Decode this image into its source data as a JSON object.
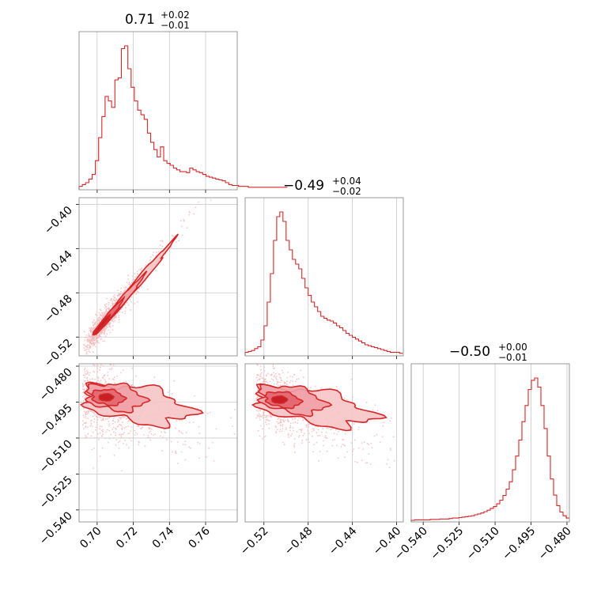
{
  "chart_data": [
    {
      "type": "histogram",
      "panel": "diag-0",
      "title": {
        "median": "0.71",
        "plus": "+0.02",
        "minus": "−0.01"
      },
      "xlim": [
        0.69,
        0.7775
      ],
      "ticks": [
        0.7,
        0.72,
        0.74,
        0.76
      ],
      "bins": {
        "start": 0.69,
        "width": 0.0018,
        "counts": [
          2,
          4,
          6,
          10,
          15,
          30,
          55,
          78,
          100,
          95,
          88,
          118,
          120,
          152,
          155,
          130,
          110,
          95,
          85,
          80,
          75,
          60,
          50,
          42,
          34,
          45,
          30,
          27,
          25,
          22,
          20,
          18,
          18,
          17,
          22,
          20,
          18,
          17,
          15,
          13,
          12,
          11,
          10,
          9,
          8,
          6,
          4,
          3,
          3,
          2,
          2,
          2,
          1,
          1,
          1,
          1,
          1,
          1,
          1,
          1,
          1,
          1,
          1,
          1
        ]
      }
    },
    {
      "type": "histogram",
      "panel": "diag-1",
      "title": {
        "median": "−0.49",
        "plus": "+0.04",
        "minus": "−0.02"
      },
      "xlim": [
        -0.537,
        -0.394
      ],
      "ticks": [
        -0.52,
        -0.48,
        -0.44,
        -0.4
      ],
      "bins": {
        "start": -0.537,
        "width": 0.00285,
        "counts": [
          2,
          3,
          4,
          6,
          8,
          15,
          30,
          55,
          85,
          120,
          145,
          150,
          140,
          120,
          110,
          100,
          95,
          90,
          80,
          70,
          62,
          55,
          50,
          45,
          40,
          38,
          36,
          35,
          33,
          30,
          28,
          25,
          22,
          20,
          18,
          16,
          14,
          12,
          10,
          9,
          8,
          7,
          6,
          5,
          4,
          3,
          2,
          2,
          2,
          1
        ]
      }
    },
    {
      "type": "histogram",
      "panel": "diag-2",
      "title": {
        "median": "−0.50",
        "plus": "+0.00",
        "minus": "−0.01"
      },
      "xlim": [
        -0.545,
        -0.479
      ],
      "ticks": [
        -0.54,
        -0.525,
        -0.51,
        -0.495,
        -0.48
      ],
      "tick_labels": [
        "−0.540",
        "−0.525",
        "−0.510",
        "−0.495",
        "−0.480"
      ],
      "bins": {
        "start": -0.545,
        "width": 0.00132,
        "counts": [
          0,
          1,
          1,
          1,
          1,
          1,
          2,
          2,
          2,
          3,
          3,
          3,
          4,
          5,
          5,
          6,
          7,
          8,
          9,
          10,
          12,
          14,
          16,
          19,
          22,
          26,
          30,
          36,
          44,
          54,
          68,
          84,
          110,
          140,
          175,
          215,
          250,
          285,
          305,
          310,
          290,
          250,
          200,
          140,
          90,
          55,
          32,
          18,
          10,
          5
        ]
      }
    },
    {
      "type": "scatter-contour",
      "panel": "p10",
      "xlim": [
        0.69,
        0.7775
      ],
      "ylim": [
        -0.537,
        -0.394
      ],
      "xticks": [
        0.7,
        0.72,
        0.74,
        0.76
      ],
      "yticks": [
        -0.4,
        -0.44,
        -0.48,
        -0.52
      ]
    },
    {
      "type": "scatter-contour",
      "panel": "p20",
      "xlim": [
        0.69,
        0.7775
      ],
      "ylim": [
        -0.545,
        -0.479
      ],
      "yticks": [
        -0.48,
        -0.495,
        -0.51,
        -0.525,
        -0.54
      ],
      "ytick_labels": [
        "−0.480",
        "−0.495",
        "−0.510",
        "−0.525",
        "−0.540"
      ]
    },
    {
      "type": "scatter-contour",
      "panel": "p21",
      "xlim": [
        -0.537,
        -0.394
      ],
      "ylim": [
        -0.545,
        -0.479
      ]
    }
  ],
  "tick_labels": {
    "x0": [
      "0.70",
      "0.72",
      "0.74",
      "0.76"
    ],
    "x1": [
      "−0.52",
      "−0.48",
      "−0.44",
      "−0.40"
    ],
    "x2": [
      "−0.540",
      "−0.525",
      "−0.510",
      "−0.495",
      "−0.480"
    ],
    "y1": [
      "−0.40",
      "−0.44",
      "−0.48",
      "−0.52"
    ],
    "y2": [
      "−0.480",
      "−0.495",
      "−0.510",
      "−0.525",
      "−0.540"
    ]
  },
  "colors": {
    "line": "#d62728",
    "fill": "#f2a5a9",
    "scatter": "#f4b8bc",
    "grid": "#c8c8c8",
    "frame": "#7f7f7f"
  }
}
